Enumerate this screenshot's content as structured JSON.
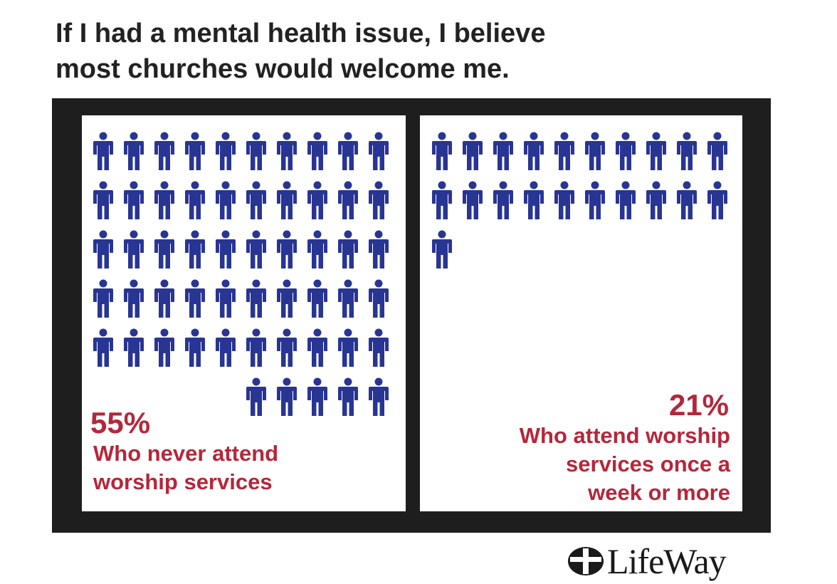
{
  "header": {
    "title_line1": "If I had a mental health issue, I believe",
    "title_line2": "most churches would welcome me."
  },
  "chart_data": {
    "type": "pictograph",
    "icon": "person-icon",
    "icon_color": "#283593",
    "label_color": "#b5263a",
    "title": "If I had a mental health issue, I believe most churches would welcome me.",
    "panels": [
      {
        "value_label": "55%",
        "value": 55,
        "description": [
          "Who never attend",
          "worship services"
        ],
        "icons_per_row": 10
      },
      {
        "value_label": "21%",
        "value": 21,
        "description": [
          "Who attend worship",
          "services once a",
          "week or more"
        ],
        "icons_per_row": 10
      }
    ]
  },
  "footer": {
    "logo_text": "LifeWay",
    "logo_icon": "lifeway-cross-icon"
  }
}
